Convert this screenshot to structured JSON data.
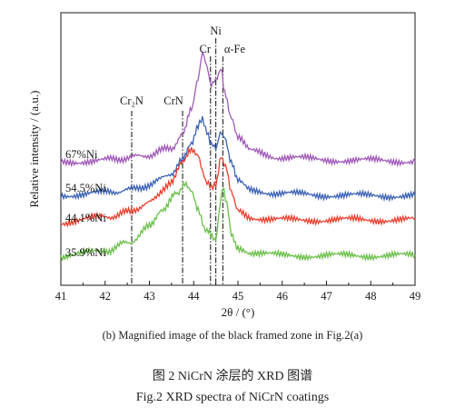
{
  "chart_data": {
    "type": "line",
    "xlabel": "2θ / (°)",
    "ylabel": "Relative intensity / (a.u.)",
    "xlim": [
      41,
      49
    ],
    "xticks": [
      "41",
      "42",
      "43",
      "44",
      "45",
      "46",
      "47",
      "48",
      "49"
    ],
    "grid": false,
    "reference_lines": [
      {
        "label": "Cr₂N",
        "x": 42.6
      },
      {
        "label": "CrN",
        "x": 43.75
      },
      {
        "label": "Cr",
        "x": 44.38
      },
      {
        "label": "Ni",
        "x": 44.5
      },
      {
        "label": "α-Fe",
        "x": 44.66
      }
    ],
    "series": [
      {
        "name": "67%Ni",
        "color": "#a05ab8",
        "x": [
          41,
          42,
          42.5,
          43,
          43.5,
          43.75,
          43.95,
          44.1,
          44.2,
          44.3,
          44.4,
          44.5,
          44.62,
          44.7,
          44.85,
          45,
          45.3,
          46,
          47,
          48,
          49
        ],
        "y": [
          0.1,
          0.3,
          0.45,
          0.7,
          1.3,
          2.4,
          4.6,
          7.0,
          8.9,
          8.0,
          6.4,
          6.7,
          7.6,
          5.7,
          3.6,
          2.0,
          1.0,
          0.5,
          0.3,
          0.25,
          0.2
        ]
      },
      {
        "name": "54.5%Ni",
        "color": "#3b62b4",
        "x": [
          41,
          42,
          42.5,
          43,
          43.5,
          43.75,
          43.95,
          44.1,
          44.2,
          44.3,
          44.4,
          44.5,
          44.6,
          44.7,
          44.85,
          45,
          45.3,
          46,
          47,
          48,
          49
        ],
        "y": [
          0.1,
          0.3,
          0.5,
          0.9,
          1.9,
          2.9,
          4.3,
          5.7,
          6.2,
          5.4,
          4.1,
          3.9,
          5.3,
          4.6,
          2.6,
          1.2,
          0.5,
          0.2,
          0.1,
          0.05,
          0.05
        ]
      },
      {
        "name": "44.1%Ni",
        "color": "#e8402f",
        "x": [
          41,
          42,
          42.5,
          43,
          43.5,
          43.75,
          43.95,
          44.1,
          44.2,
          44.3,
          44.4,
          44.5,
          44.62,
          44.72,
          44.85,
          45,
          45.3,
          46,
          47,
          48,
          49
        ],
        "y": [
          0.1,
          0.5,
          0.9,
          1.7,
          3.4,
          4.9,
          5.9,
          5.4,
          4.3,
          3.4,
          2.8,
          3.3,
          5.6,
          4.6,
          2.5,
          1.1,
          0.5,
          0.3,
          0.3,
          0.3,
          0.3
        ]
      },
      {
        "name": "35.9%Ni",
        "color": "#6bbf4a",
        "x": [
          41,
          42,
          42.5,
          43,
          43.3,
          43.6,
          43.8,
          43.95,
          44.1,
          44.3,
          44.5,
          44.6,
          44.65,
          44.75,
          44.85,
          45,
          45.3,
          46,
          47,
          48,
          49
        ],
        "y": [
          0.1,
          0.6,
          1.2,
          2.5,
          3.8,
          5.3,
          5.9,
          5.3,
          3.8,
          2.2,
          1.6,
          4.2,
          5.9,
          4.3,
          2.0,
          0.9,
          0.5,
          0.2,
          0.2,
          0.2,
          0.2
        ]
      }
    ]
  },
  "captions": {
    "subcaption": "(b) Magnified image of the black framed zone in Fig.2(a)",
    "figure_cn": "图 2   NiCrN 涂层的 XRD 图谱",
    "figure_en": "Fig.2   XRD spectra of NiCrN coatings"
  }
}
